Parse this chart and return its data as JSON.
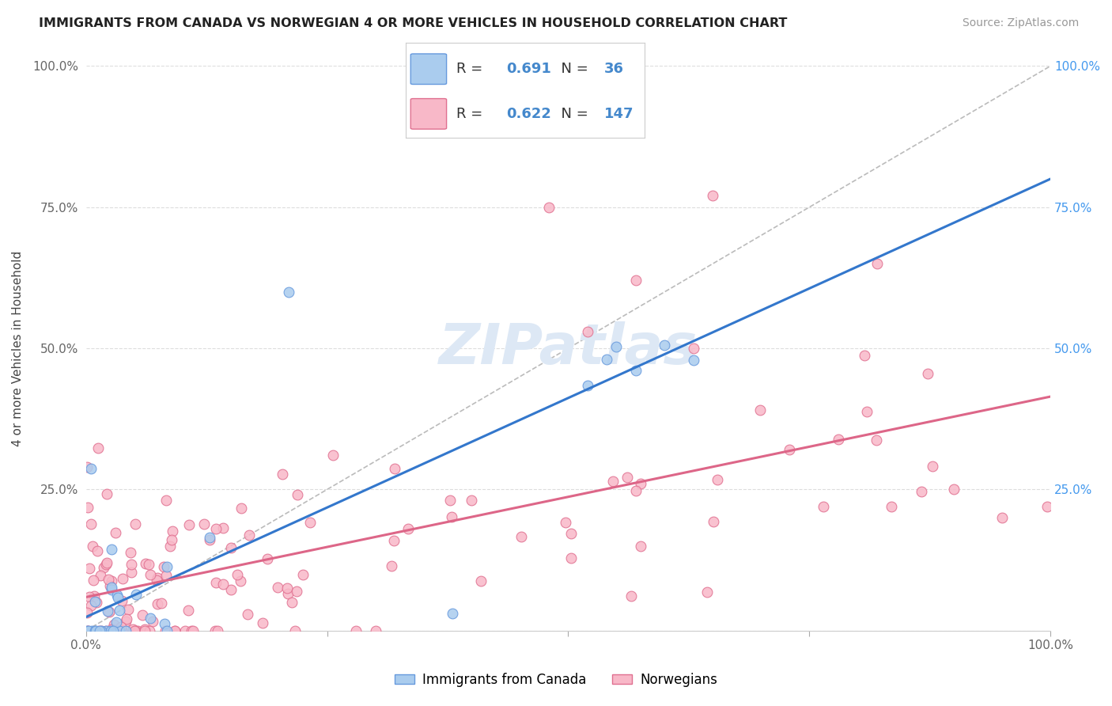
{
  "title": "IMMIGRANTS FROM CANADA VS NORWEGIAN 4 OR MORE VEHICLES IN HOUSEHOLD CORRELATION CHART",
  "source": "Source: ZipAtlas.com",
  "ylabel": "4 or more Vehicles in Household",
  "R_canada": 0.691,
  "N_canada": 36,
  "R_norway": 0.622,
  "N_norway": 147,
  "legend_label_canada": "Immigrants from Canada",
  "legend_label_norway": "Norwegians",
  "canada_face_color": "#aaccee",
  "canada_edge_color": "#6699dd",
  "norway_face_color": "#f8b8c8",
  "norway_edge_color": "#e07090",
  "canada_line_color": "#3377cc",
  "norway_line_color": "#dd6688",
  "diagonal_color": "#bbbbbb",
  "grid_color": "#dddddd",
  "title_color": "#222222",
  "source_color": "#999999",
  "axis_label_color": "#444444",
  "tick_color": "#666666",
  "right_tick_color": "#4499ee",
  "watermark_color": "#dde8f5",
  "background_color": "#ffffff"
}
